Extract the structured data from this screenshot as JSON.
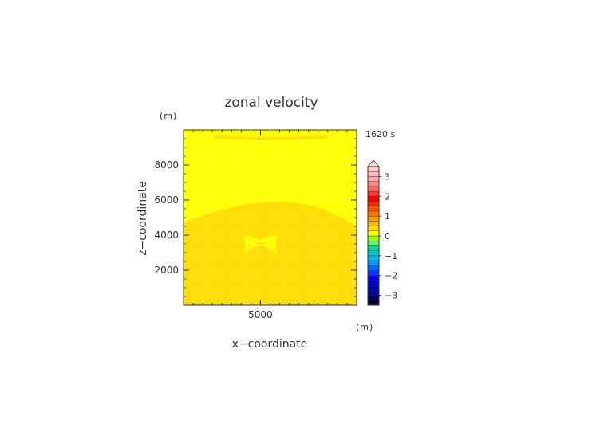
{
  "chart_data": {
    "type": "heatmap",
    "title": "zonal velocity",
    "time_label": "1620 s",
    "xlabel": "x−coordinate",
    "ylabel": "z−coordinate",
    "x_unit": "(m)",
    "z_unit": "(m)",
    "xlim": [
      1000,
      10000
    ],
    "ylim": [
      0,
      10000
    ],
    "x_ticks": [
      5000
    ],
    "x_tick_labels": [
      "5000"
    ],
    "y_ticks": [
      2000,
      4000,
      6000,
      8000
    ],
    "y_tick_labels": [
      "2000",
      "4000",
      "6000",
      "8000"
    ],
    "colorbar": {
      "levels": [
        -3.5,
        -3.25,
        -3.0,
        -2.75,
        -2.5,
        -2.25,
        -2.0,
        -1.75,
        -1.5,
        -1.25,
        -1.0,
        -0.75,
        -0.5,
        -0.25,
        0.0,
        0.25,
        0.5,
        0.75,
        1.0,
        1.25,
        1.5,
        1.75,
        2.0,
        2.25,
        2.5,
        2.75,
        3.0,
        3.25,
        3.5
      ],
      "colors": [
        "#000033",
        "#000066",
        "#000099",
        "#0000b3",
        "#0000cc",
        "#0000e6",
        "#0033ff",
        "#0066ff",
        "#0099ff",
        "#00bbee",
        "#00cccc",
        "#00dd99",
        "#66ee66",
        "#99ff00",
        "#ffff00",
        "#ffdd00",
        "#ffbb00",
        "#ff9900",
        "#ff7700",
        "#ff5500",
        "#ff2200",
        "#ff0000",
        "#ff3333",
        "#ff6666",
        "#ff8888",
        "#ffaaaa",
        "#ffbbbb",
        "#ffcccc"
      ],
      "tick_values": [
        -3,
        -2,
        -1,
        0,
        1,
        2,
        3
      ],
      "tick_labels": [
        "−3",
        "−2",
        "−1",
        "0",
        "1",
        "2",
        "3"
      ],
      "extend": "max"
    },
    "fields": {
      "background_value": 0.1,
      "regions": [
        {
          "name": "upper-band",
          "value": 0.1,
          "z_from": 4700,
          "z_to": 10000
        },
        {
          "name": "lower-dome",
          "value": 0.1,
          "z_from": 0,
          "z_to": 5900
        },
        {
          "name": "top-strip",
          "value": 0.1,
          "z_from": 9500,
          "z_to": 10000
        },
        {
          "name": "bubble",
          "value": -0.1,
          "x_center": 5000,
          "z_center": 3500
        }
      ]
    }
  }
}
